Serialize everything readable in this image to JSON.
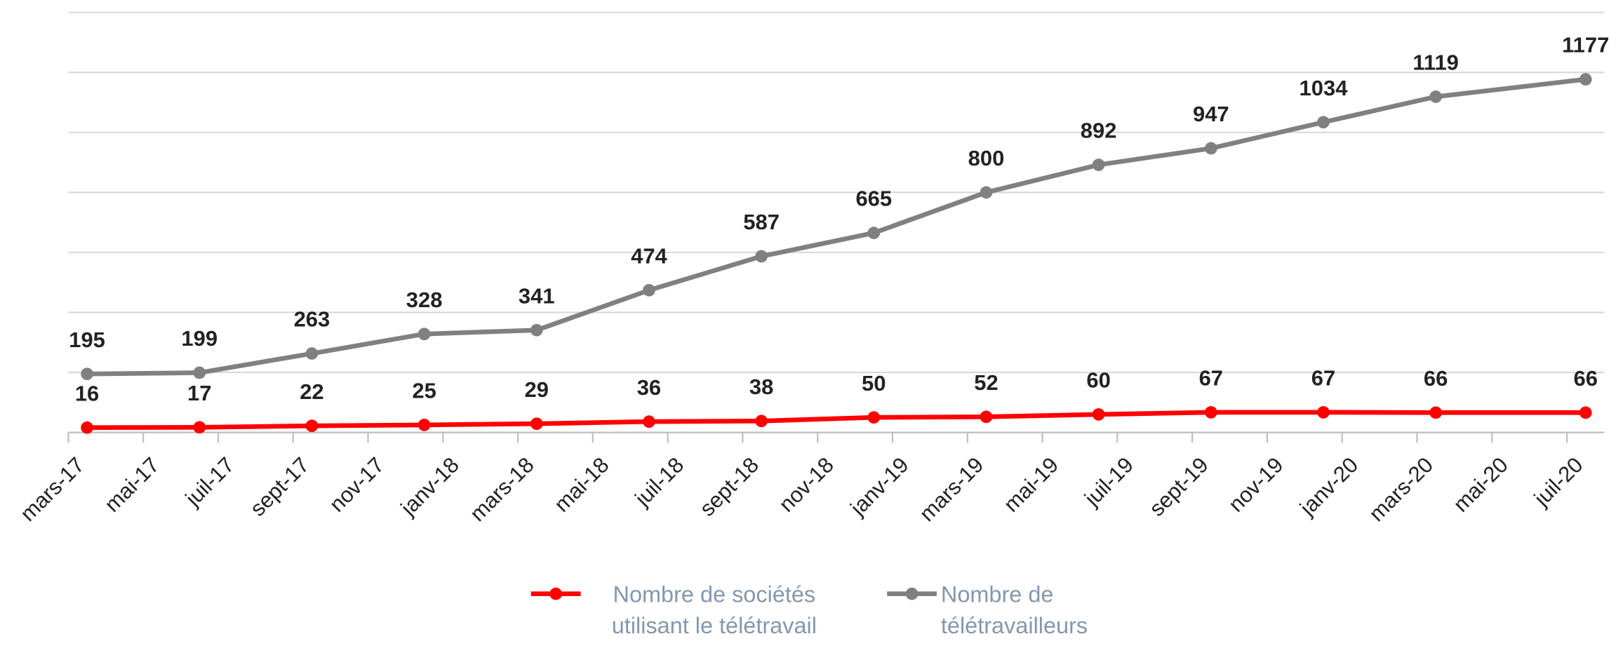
{
  "chart_data": {
    "type": "line",
    "x": [
      0.5,
      3.5,
      6.5,
      9.5,
      12.5,
      15.5,
      18.5,
      21.5,
      24.5,
      27.5,
      30.5,
      33.5,
      36.5,
      40.5
    ],
    "series": [
      {
        "name": "Nombre de sociétés utilisant le télétravail",
        "color": "#ff0000",
        "values": [
          16,
          17,
          22,
          25,
          29,
          36,
          38,
          50,
          52,
          60,
          67,
          67,
          66,
          66
        ]
      },
      {
        "name": "Nombre de télétravailleurs",
        "color": "#808080",
        "values": [
          195,
          199,
          263,
          328,
          341,
          474,
          587,
          665,
          800,
          892,
          947,
          1034,
          1119,
          1177
        ]
      }
    ],
    "xlim": [
      0,
      41
    ],
    "xticks": [
      {
        "value": 0,
        "label": "mars-17"
      },
      {
        "value": 2,
        "label": "mai-17"
      },
      {
        "value": 4,
        "label": "juil-17"
      },
      {
        "value": 6,
        "label": "sept-17"
      },
      {
        "value": 8,
        "label": "nov-17"
      },
      {
        "value": 10,
        "label": "janv-18"
      },
      {
        "value": 12,
        "label": "mars-18"
      },
      {
        "value": 14,
        "label": "mai-18"
      },
      {
        "value": 16,
        "label": "juil-18"
      },
      {
        "value": 18,
        "label": "sept-18"
      },
      {
        "value": 20,
        "label": "nov-18"
      },
      {
        "value": 22,
        "label": "janv-19"
      },
      {
        "value": 24,
        "label": "mars-19"
      },
      {
        "value": 26,
        "label": "mai-19"
      },
      {
        "value": 28,
        "label": "juil-19"
      },
      {
        "value": 30,
        "label": "sept-19"
      },
      {
        "value": 32,
        "label": "nov-19"
      },
      {
        "value": 34,
        "label": "janv-20"
      },
      {
        "value": 36,
        "label": "mars-20"
      },
      {
        "value": 38,
        "label": "mai-20"
      },
      {
        "value": 40,
        "label": "juil-20"
      }
    ],
    "ylim": [
      0,
      1400
    ],
    "yticks": [
      0,
      200,
      400,
      600,
      800,
      1000,
      1200,
      1400
    ],
    "grid": true,
    "legend": "bottom"
  }
}
